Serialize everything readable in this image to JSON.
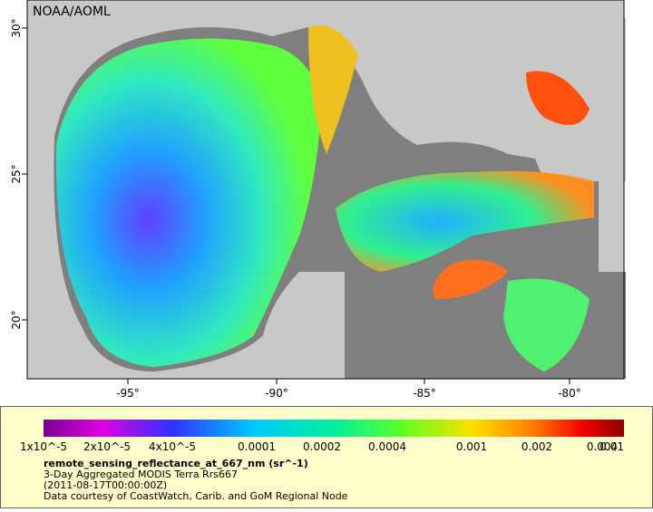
{
  "map": {
    "credit": "NOAA/AOML",
    "lon_ticks": [
      "-95°",
      "-90°",
      "-85°",
      "-80°"
    ],
    "lat_ticks": [
      "30°",
      "25°",
      "20°"
    ]
  },
  "colorbar": {
    "ticks": [
      "1x10^-5",
      "2x10^-5",
      "4x10^-5",
      "0.0001",
      "0.0002",
      "0.0004",
      "0.001",
      "0.002",
      "0.004",
      "0.01"
    ]
  },
  "legend": {
    "title": "remote_sensing_reflectance_at_667_nm (sr^-1)",
    "lines": [
      "3-Day Aggregated MODIS Terra Rrs667",
      "(2011-08-17T00:00:00Z)",
      "Data courtesy of CoastWatch, Carib. and GoM Regional Node"
    ]
  }
}
